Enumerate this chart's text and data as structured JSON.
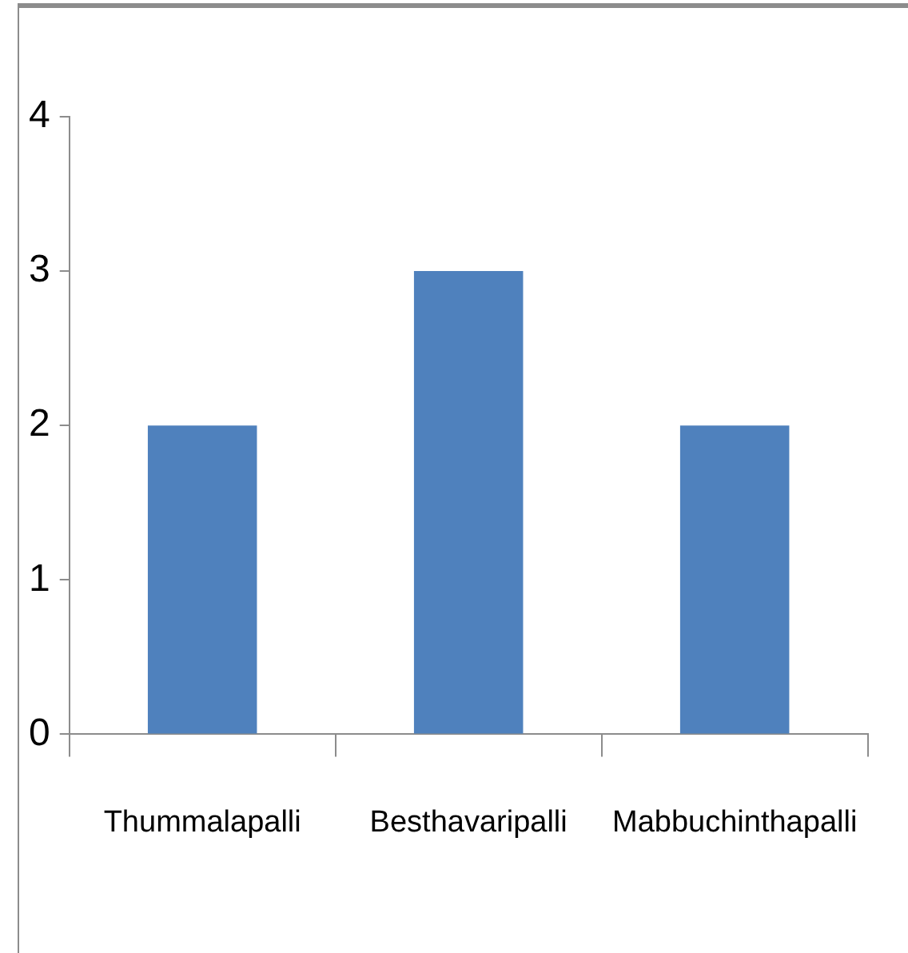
{
  "chart_data": {
    "type": "bar",
    "categories": [
      "Thummalapalli",
      "Besthavaripalli",
      "Mabbuchinthapalli"
    ],
    "values": [
      2,
      3,
      2
    ],
    "color": "#4f81bd",
    "ylim": [
      0,
      4
    ],
    "yticks": [
      0,
      1,
      2,
      3,
      4
    ],
    "grid": false,
    "legend": false
  }
}
